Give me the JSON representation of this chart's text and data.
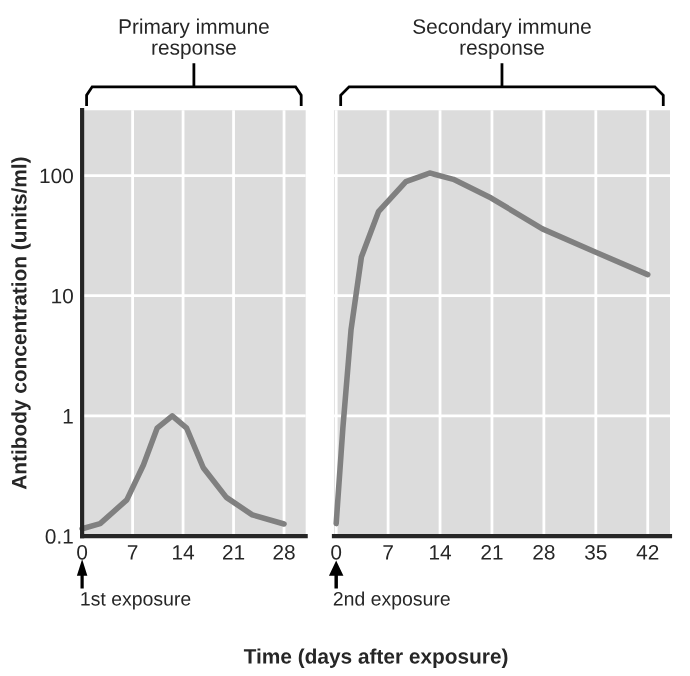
{
  "chart_data": [
    {
      "type": "line",
      "title": "Primary immune\nresponse",
      "ylabel": "Antibody concentration (units/ml)",
      "xlabel": "Time (days after exposure)",
      "x": [
        0,
        2.5,
        6.2,
        8.5,
        10.4,
        12.5,
        14.5,
        16.8,
        20,
        23.6,
        28
      ],
      "series": [
        {
          "color": "#808080",
          "values": [
            0.115,
            0.127,
            0.2,
            0.39,
            0.79,
            1.0,
            0.79,
            0.37,
            0.21,
            0.15,
            0.126
          ]
        }
      ],
      "xlim": [
        0,
        31
      ],
      "xticks": [
        0,
        7,
        14,
        21,
        28
      ],
      "ylim": [
        0.1,
        350
      ],
      "yticks": [
        0.1,
        1,
        10,
        100
      ],
      "log": true,
      "grid": true,
      "line_style": "solid",
      "annotations": [
        "1st exposure"
      ]
    },
    {
      "type": "line",
      "title": "Secondary immune\nresponse",
      "x": [
        0,
        0.9,
        2,
        3.4,
        5.7,
        9.4,
        12.6,
        15.8,
        20.9,
        27.8,
        35,
        42
      ],
      "series": [
        {
          "color": "#808080",
          "values": [
            0.127,
            0.79,
            5.2,
            21,
            50,
            89,
            105,
            93,
            65,
            36,
            23,
            15
          ]
        }
      ],
      "xlim": [
        -0.3,
        45
      ],
      "xticks": [
        0,
        7,
        14,
        21,
        28,
        35,
        42
      ],
      "ylim": [
        0.1,
        350
      ],
      "yticks": [
        0.1,
        1,
        10,
        100
      ],
      "log": true,
      "grid": true,
      "line_style": "solid",
      "tick_labels": "x",
      "annotations": [
        "2nd exposure"
      ]
    }
  ]
}
